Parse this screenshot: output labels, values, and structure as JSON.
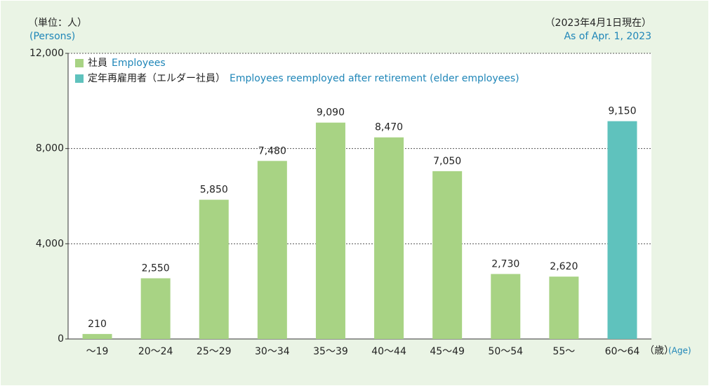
{
  "chart_data": {
    "type": "bar",
    "unit_label": "（単位：人）",
    "unit_label_en": "(Persons)",
    "date_note": "（2023年4月1日現在）",
    "date_note_en": "As of Apr. 1, 2023",
    "x_unit": "（歳）",
    "x_unit_en": "(Age)",
    "categories": [
      "～19",
      "20～24",
      "25～29",
      "30～34",
      "35～39",
      "40～44",
      "45～49",
      "50～54",
      "55～",
      "60～64"
    ],
    "series": [
      {
        "name": "社員",
        "name_en": "Employees",
        "color": "#a8d384",
        "values": [
          210,
          2550,
          5850,
          7480,
          9090,
          8470,
          7050,
          2730,
          2620,
          null
        ],
        "value_labels": [
          "210",
          "2,550",
          "5,850",
          "7,480",
          "9,090",
          "8,470",
          "7,050",
          "2,730",
          "2,620",
          null
        ]
      },
      {
        "name": "定年再雇用者（エルダー社員）",
        "name_en": "Employees reemployed after retirement (elder employees)",
        "color": "#5fc2bd",
        "values": [
          null,
          null,
          null,
          null,
          null,
          null,
          null,
          null,
          null,
          9150
        ],
        "value_labels": [
          null,
          null,
          null,
          null,
          null,
          null,
          null,
          null,
          null,
          "9,150"
        ]
      }
    ],
    "ylim": [
      0,
      12000
    ],
    "yticks": [
      0,
      {
        "value": 4000,
        "label": "4,000"
      },
      {
        "value": 8000,
        "label": "8,000"
      },
      {
        "value": 12000,
        "label": "12,000"
      }
    ],
    "grid": true
  }
}
